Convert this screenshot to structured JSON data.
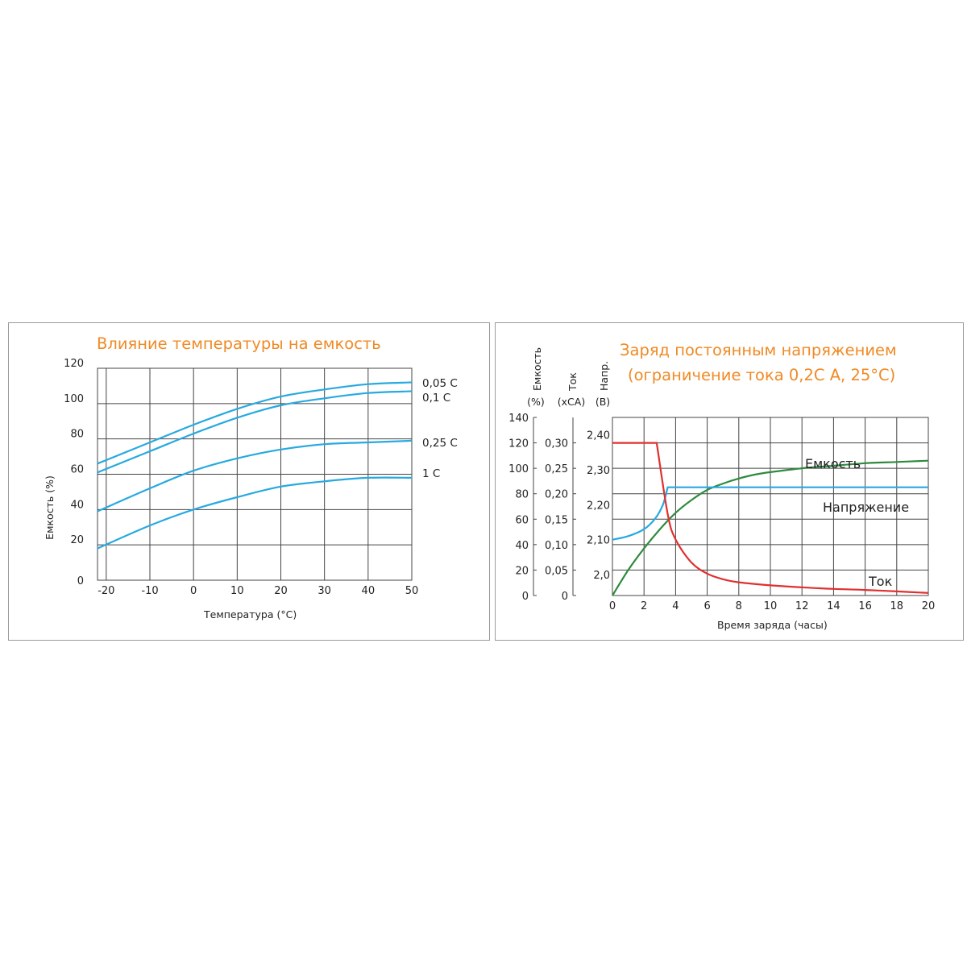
{
  "chart_data": [
    {
      "type": "line",
      "title": "Влияние температуры на емкость",
      "xlabel": "Температура (°C)",
      "ylabel": "Емкость (%)",
      "xlim": [
        -22,
        50
      ],
      "ylim": [
        0,
        120
      ],
      "x_ticks": [
        "-20",
        "-10",
        "0",
        "10",
        "20",
        "30",
        "40",
        "50"
      ],
      "y_ticks": [
        "0",
        "20",
        "40",
        "60",
        "80",
        "100",
        "120"
      ],
      "grid": true,
      "color": "#27a9e1",
      "series": [
        {
          "name": "0,05 C",
          "x": [
            -22,
            -10,
            0,
            10,
            20,
            30,
            40,
            50
          ],
          "y": [
            66,
            78,
            88,
            97,
            104,
            108,
            111,
            112
          ]
        },
        {
          "name": "0,1 C",
          "x": [
            -22,
            -10,
            0,
            10,
            20,
            30,
            40,
            50
          ],
          "y": [
            61,
            73,
            83,
            92,
            99,
            103,
            106,
            107
          ]
        },
        {
          "name": "0,25 C",
          "x": [
            -22,
            -10,
            0,
            10,
            20,
            30,
            40,
            50
          ],
          "y": [
            39,
            52,
            62,
            69,
            74,
            77,
            78,
            79
          ]
        },
        {
          "name": "1 C",
          "x": [
            -22,
            -10,
            0,
            10,
            20,
            30,
            40,
            50
          ],
          "y": [
            18,
            31,
            40,
            47,
            53,
            56,
            58,
            58
          ]
        }
      ]
    },
    {
      "type": "line",
      "title": [
        "Заряд постоянным напряжением",
        "(ограничение тока 0,2С А, 25°С)"
      ],
      "xlabel": "Время заряда (часы)",
      "xlim": [
        0,
        20
      ],
      "x_ticks": [
        "0",
        "2",
        "4",
        "6",
        "8",
        "10",
        "12",
        "14",
        "16",
        "18",
        "20"
      ],
      "grid": true,
      "axes": [
        {
          "header": "Емкость",
          "unit": "(%)",
          "range": [
            0,
            140
          ],
          "ticks": [
            "0",
            "20",
            "40",
            "60",
            "80",
            "100",
            "120",
            "140"
          ]
        },
        {
          "header": "Ток",
          "unit": "(xCA)",
          "range": [
            0,
            0.35
          ],
          "ticks": [
            "0",
            "0,05",
            "0,10",
            "0,15",
            "0,20",
            "0,25",
            "0,30"
          ]
        },
        {
          "header": "Напр.",
          "unit": "(В)",
          "range": [
            1.94,
            2.45
          ],
          "ticks": [
            "2,0",
            "2,10",
            "2,20",
            "2,30",
            "2,40"
          ]
        }
      ],
      "series": [
        {
          "name": "Емкость",
          "axis": 0,
          "color": "#2e8b3e",
          "x": [
            0,
            1,
            2,
            3,
            4,
            5,
            6,
            7,
            8,
            9,
            10,
            12,
            14,
            16,
            18,
            20
          ],
          "y": [
            0,
            20,
            37,
            52,
            65,
            75,
            83,
            88,
            92,
            95,
            97,
            100,
            102,
            104,
            105,
            106
          ]
        },
        {
          "name": "Напряжение",
          "axis": 2,
          "color": "#27a9e1",
          "x": [
            0,
            1,
            2,
            2.7,
            3.2,
            3.5,
            4,
            6,
            8,
            10,
            12,
            14,
            16,
            18,
            20
          ],
          "y": [
            2.1,
            2.11,
            2.13,
            2.16,
            2.2,
            2.25,
            2.25,
            2.25,
            2.25,
            2.25,
            2.25,
            2.25,
            2.25,
            2.25,
            2.25
          ]
        },
        {
          "name": "Ток",
          "axis": 1,
          "color": "#e03030",
          "x": [
            0,
            2.8,
            3.5,
            4,
            5,
            6,
            7,
            8,
            10,
            12,
            14,
            16,
            18,
            20
          ],
          "y": [
            0.3,
            0.3,
            0.16,
            0.11,
            0.065,
            0.043,
            0.032,
            0.026,
            0.02,
            0.016,
            0.013,
            0.011,
            0.008,
            0.005
          ]
        }
      ]
    }
  ]
}
